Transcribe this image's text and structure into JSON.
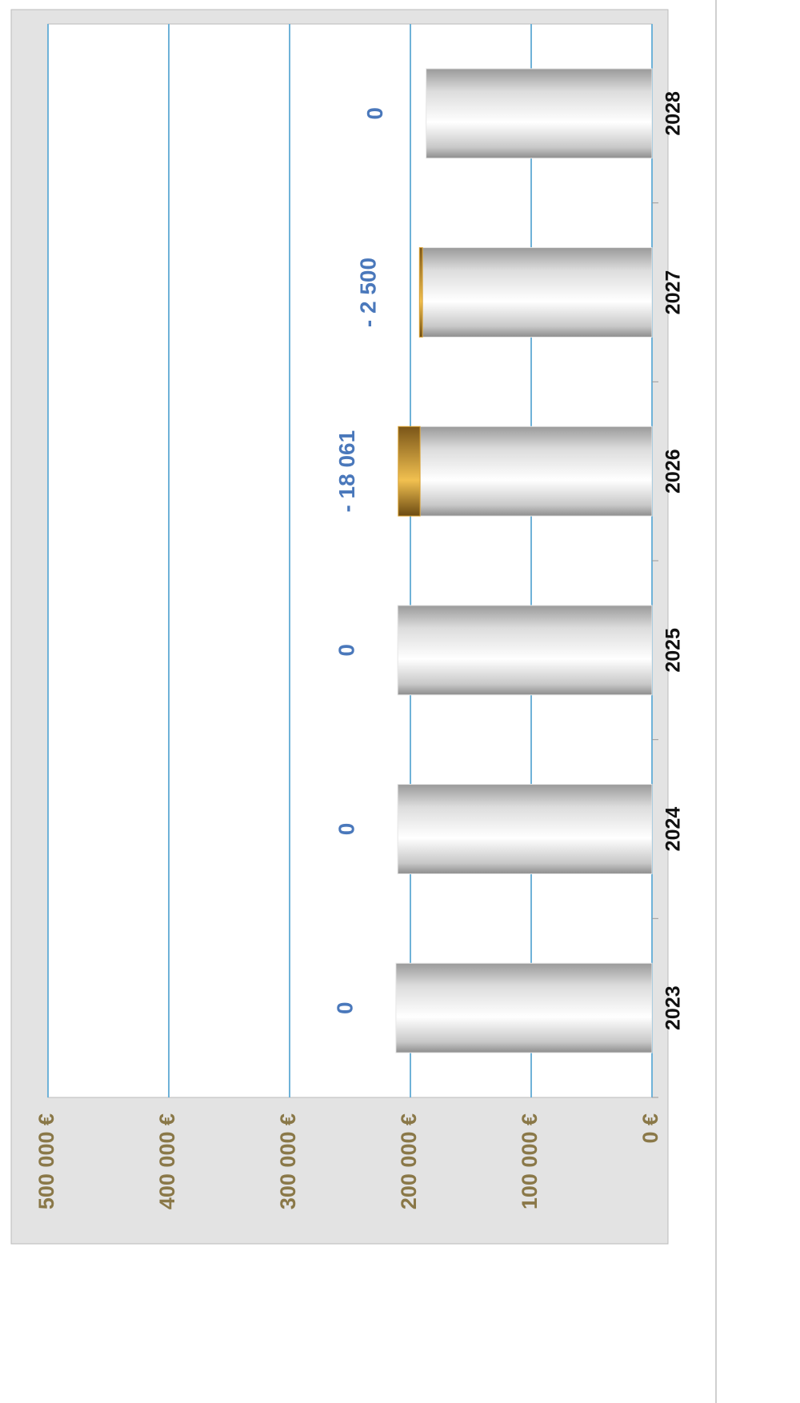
{
  "chart_data": {
    "type": "bar",
    "stacked": true,
    "categories": [
      "2023",
      "2024",
      "2025",
      "2026",
      "2027",
      "2028"
    ],
    "series": [
      {
        "color": "#e6e6e6",
        "values": [
          212000,
          210500,
          210500,
          192000,
          190000,
          187000
        ]
      },
      {
        "color": "#d9a030",
        "values": [
          0,
          0,
          0,
          -18061,
          -2500,
          0
        ],
        "value_labels": [
          "0",
          "0",
          "0",
          "- 18 061",
          "- 2 500",
          "0"
        ]
      }
    ],
    "ylim": [
      0,
      500000
    ],
    "yticks": [
      {
        "value": 0,
        "label": "0 €"
      },
      {
        "value": 100000,
        "label": "100 000 €"
      },
      {
        "value": 200000,
        "label": "200 000 €"
      },
      {
        "value": 300000,
        "label": "300 000 €"
      },
      {
        "value": 400000,
        "label": "400 000 €"
      },
      {
        "value": 500000,
        "label": "500 000 €"
      }
    ],
    "grid": true
  }
}
